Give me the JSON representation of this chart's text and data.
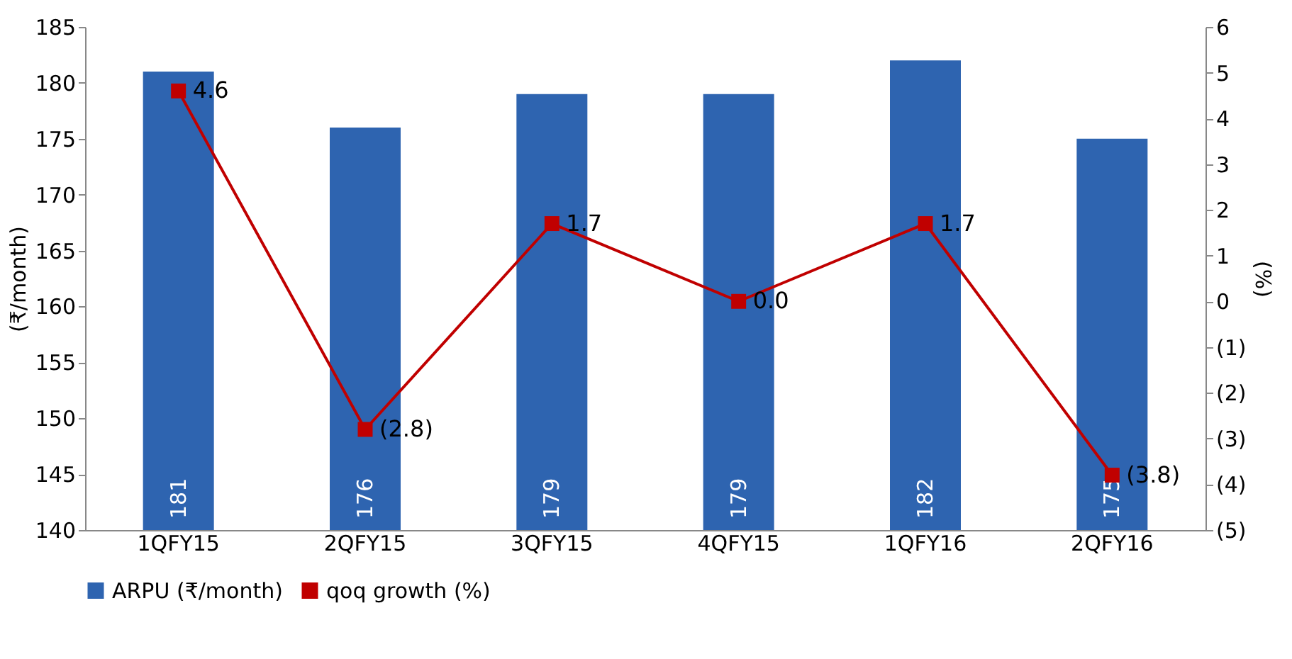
{
  "chart_data": {
    "type": "bar",
    "categories": [
      "1QFY15",
      "2QFY15",
      "3QFY15",
      "4QFY15",
      "1QFY16",
      "2QFY16"
    ],
    "ylabel": "(₹/month)",
    "y2label": "(%)",
    "ylim": [
      140,
      185
    ],
    "yticks": [
      140,
      145,
      150,
      155,
      160,
      165,
      170,
      175,
      180,
      185
    ],
    "y2lim": [
      -5,
      6
    ],
    "y2ticks": [
      {
        "value": -5,
        "label": "(5)"
      },
      {
        "value": -4,
        "label": "(4)"
      },
      {
        "value": -3,
        "label": "(3)"
      },
      {
        "value": -2,
        "label": "(2)"
      },
      {
        "value": -1,
        "label": "(1)"
      },
      0,
      1,
      2,
      3,
      4,
      5,
      6
    ],
    "grid": false,
    "legend": "bottom",
    "series": [
      {
        "name": "ARPU (₹/month)",
        "color": "#2e64b0",
        "values": [
          181,
          176,
          179,
          179,
          182,
          175
        ],
        "value_labels": [
          "181",
          "176",
          "179",
          "179",
          "182",
          "175"
        ]
      },
      {
        "name": "qoq growth (%)",
        "type": "line",
        "axis": "y2",
        "color": "#c00000",
        "marker": "square",
        "values": [
          4.6,
          -2.8,
          1.7,
          0.0,
          1.7,
          -3.8
        ],
        "value_labels": [
          "4.6",
          "(2.8)",
          "1.7",
          "0.0",
          "1.7",
          "(3.8)"
        ]
      }
    ]
  }
}
